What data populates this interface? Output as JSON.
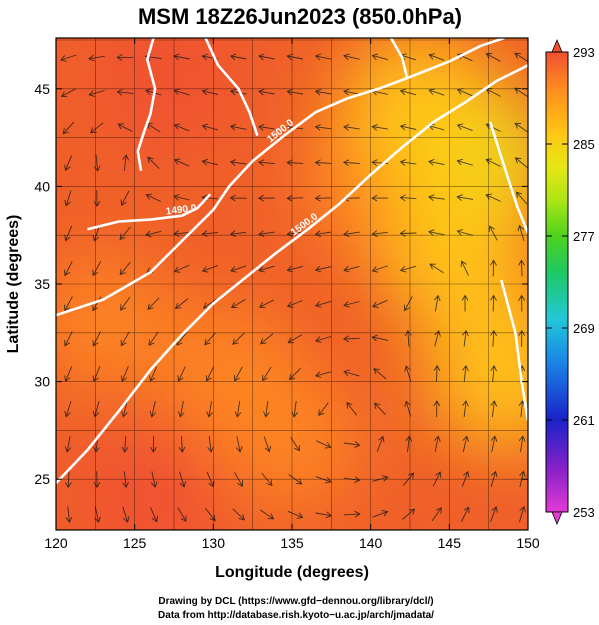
{
  "chart_data": {
    "type": "heatmap",
    "title": "MSM 18Z26Jun2023 (850.0hPa)",
    "xlabel": "Longitude (degrees)",
    "ylabel": "Latitude  (degrees)",
    "xlim": [
      120,
      150
    ],
    "ylim": [
      22.4,
      47.6
    ],
    "x_ticks": [
      120,
      125,
      130,
      135,
      140,
      145,
      150
    ],
    "y_ticks": [
      25,
      30,
      35,
      40,
      45
    ],
    "colorbar": {
      "min": 253,
      "max": 293,
      "ticks": [
        253,
        261,
        269,
        277,
        285,
        293
      ],
      "colors": [
        "#e43ad6",
        "#8a22c8",
        "#1a22c8",
        "#1a80e6",
        "#22c8d8",
        "#1ec864",
        "#4ed21e",
        "#aee614",
        "#e6e614",
        "#ffc814",
        "#ff8c1e",
        "#f05032"
      ]
    },
    "field_description": "850hPa temperature (K) with wind streamlines and geopotential height contours",
    "contours": [
      {
        "label": "1500.0",
        "points": [
          [
            120,
            24.8
          ],
          [
            122,
            26.5
          ],
          [
            124,
            28.5
          ],
          [
            126,
            30.6
          ],
          [
            128,
            32.4
          ],
          [
            130,
            34.0
          ],
          [
            132,
            35.3
          ],
          [
            134,
            36.6
          ],
          [
            136,
            37.8
          ],
          [
            138,
            39.1
          ],
          [
            140,
            40.6
          ],
          [
            142,
            42.0
          ],
          [
            144,
            43.3
          ],
          [
            146,
            44.3
          ],
          [
            148,
            45.4
          ],
          [
            150,
            46.2
          ]
        ]
      },
      {
        "label": "1500.0",
        "points": [
          [
            120,
            33.4
          ],
          [
            123,
            34.2
          ],
          [
            126,
            35.6
          ],
          [
            128,
            37.2
          ],
          [
            130,
            38.8
          ],
          [
            131,
            40.0
          ],
          [
            132.5,
            41.3
          ],
          [
            134.5,
            42.6
          ],
          [
            136.5,
            43.8
          ],
          [
            138.5,
            44.5
          ],
          [
            140.5,
            45.0
          ],
          [
            142.5,
            45.6
          ],
          [
            145,
            46.4
          ],
          [
            147,
            47.2
          ],
          [
            148.5,
            47.6
          ]
        ]
      },
      {
        "label": "1490.0",
        "points": [
          [
            122,
            37.8
          ],
          [
            124,
            38.2
          ],
          [
            126,
            38.3
          ],
          [
            128,
            38.5
          ],
          [
            129,
            38.9
          ],
          [
            129.8,
            39.6
          ]
        ]
      },
      {
        "label": "",
        "points": [
          [
            126.2,
            47.6
          ],
          [
            125.8,
            46.5
          ],
          [
            126.3,
            45.0
          ],
          [
            126.0,
            43.7
          ],
          [
            125.6,
            42.8
          ],
          [
            125.2,
            41.8
          ],
          [
            125.4,
            40.8
          ]
        ]
      },
      {
        "label": "",
        "points": [
          [
            129.5,
            47.6
          ],
          [
            130.3,
            46.2
          ],
          [
            131.6,
            45.0
          ],
          [
            132.3,
            43.8
          ],
          [
            132.8,
            42.6
          ]
        ]
      },
      {
        "label": "",
        "points": [
          [
            141.3,
            47.6
          ],
          [
            142.0,
            46.6
          ],
          [
            142.3,
            45.6
          ]
        ]
      },
      {
        "label": "",
        "points": [
          [
            147.6,
            43.3
          ],
          [
            148.5,
            41.0
          ],
          [
            149.3,
            39.0
          ],
          [
            150,
            37.6
          ]
        ]
      },
      {
        "label": "",
        "points": [
          [
            148.3,
            35.2
          ],
          [
            149.2,
            32.5
          ],
          [
            149.6,
            30.0
          ],
          [
            150,
            28.0
          ]
        ]
      }
    ],
    "warm_centers": [
      [
        127,
        45.5,
        292
      ],
      [
        123,
        33,
        291
      ],
      [
        126,
        24,
        292
      ],
      [
        135,
        27,
        291
      ],
      [
        131,
        30.5,
        290
      ],
      [
        140,
        40,
        289
      ]
    ],
    "cool_centers": [
      [
        146.5,
        41.5,
        283
      ],
      [
        145.5,
        36.5,
        284
      ],
      [
        148.5,
        30.5,
        285
      ],
      [
        143,
        44,
        286
      ]
    ],
    "cyclonic_centers": [
      [
        123.5,
        42.5
      ],
      [
        137,
        28.5
      ],
      [
        143.5,
        34.8
      ],
      [
        141,
        26.5
      ],
      [
        148,
        38
      ]
    ]
  },
  "credits": {
    "line1": "Drawing by DCL (https://www.gfd−dennou.org/library/dcl/)",
    "line2": "Data from http://database.rish.kyoto−u.ac.jp/arch/jmadata/"
  }
}
